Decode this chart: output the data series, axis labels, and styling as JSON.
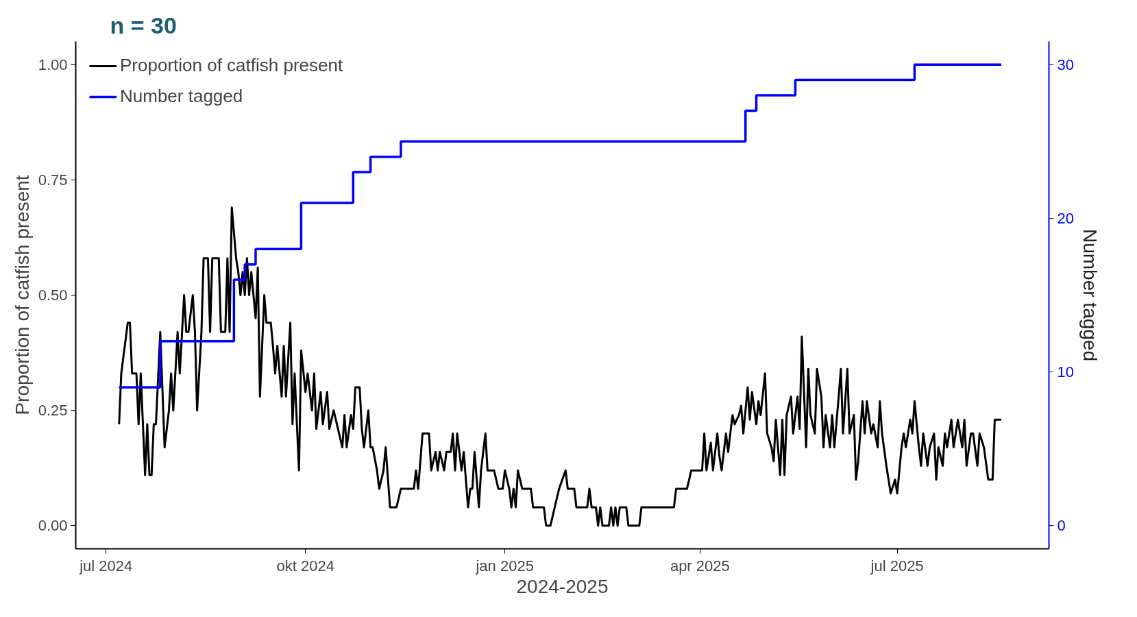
{
  "chart_data": {
    "type": "line",
    "xlabel": "2024-2025",
    "ylabel": "Proportion of catfish present",
    "y2label": "Number tagged",
    "annotations": [
      "n = 30"
    ],
    "xlim": [
      "2024-06-17",
      "2025-09-09"
    ],
    "xticks": [
      {
        "value": "2024-07-01",
        "label": "jul 2024"
      },
      {
        "value": "2024-10-01",
        "label": "okt 2024"
      },
      {
        "value": "2025-01-01",
        "label": "jan 2025"
      },
      {
        "value": "2025-04-01",
        "label": "apr 2025"
      },
      {
        "value": "2025-07-01",
        "label": "jul 2025"
      }
    ],
    "ylim": [
      -0.05,
      1.05
    ],
    "yticks": [
      {
        "value": 0,
        "label": "0.00"
      },
      {
        "value": 0.25,
        "label": "0.25"
      },
      {
        "value": 0.5,
        "label": "0.50"
      },
      {
        "value": 0.75,
        "label": "0.75"
      },
      {
        "value": 1,
        "label": "1.00"
      }
    ],
    "y2lim": [
      -1.5,
      31.5
    ],
    "y2ticks": [
      0,
      10,
      20,
      30
    ],
    "grid": false,
    "legend": "top left",
    "marker": "none",
    "line_style": "solid",
    "series": [
      {
        "name": "Proportion of catfish present",
        "color": "#000000",
        "x": [
          "2024-07-07",
          "2024-07-08",
          "2024-07-11",
          "2024-07-12",
          "2024-07-13",
          "2024-07-15",
          "2024-07-16",
          "2024-07-17",
          "2024-07-19",
          "2024-07-20",
          "2024-07-21",
          "2024-07-22",
          "2024-07-23",
          "2024-07-24",
          "2024-07-26",
          "2024-07-28",
          "2024-07-30",
          "2024-07-31",
          "2024-08-01",
          "2024-08-03",
          "2024-08-04",
          "2024-08-06",
          "2024-08-07",
          "2024-08-08",
          "2024-08-10",
          "2024-08-11",
          "2024-08-12",
          "2024-08-14",
          "2024-08-15",
          "2024-08-17",
          "2024-08-18",
          "2024-08-19",
          "2024-08-22",
          "2024-08-23",
          "2024-08-25",
          "2024-08-26",
          "2024-08-27",
          "2024-08-28",
          "2024-08-30",
          "2024-08-31",
          "2024-09-01",
          "2024-09-02",
          "2024-09-03",
          "2024-09-04",
          "2024-09-05",
          "2024-09-06",
          "2024-09-08",
          "2024-09-09",
          "2024-09-10",
          "2024-09-12",
          "2024-09-13",
          "2024-09-15",
          "2024-09-16",
          "2024-09-17",
          "2024-09-18",
          "2024-09-20",
          "2024-09-21",
          "2024-09-22",
          "2024-09-24",
          "2024-09-25",
          "2024-09-26",
          "2024-09-28",
          "2024-09-29",
          "2024-10-01",
          "2024-10-02",
          "2024-10-04",
          "2024-10-05",
          "2024-10-06",
          "2024-10-08",
          "2024-10-09",
          "2024-10-11",
          "2024-10-12",
          "2024-10-14",
          "2024-10-16",
          "2024-10-18",
          "2024-10-19",
          "2024-10-20",
          "2024-10-22",
          "2024-10-23",
          "2024-10-24",
          "2024-10-26",
          "2024-10-27",
          "2024-10-28",
          "2024-10-30",
          "2024-10-31",
          "2024-11-01",
          "2024-11-03",
          "2024-11-04",
          "2024-11-06",
          "2024-11-07",
          "2024-11-09",
          "2024-11-12",
          "2024-11-14",
          "2024-11-20",
          "2024-11-21",
          "2024-11-22",
          "2024-11-24",
          "2024-11-27",
          "2024-11-28",
          "2024-11-30",
          "2024-12-01",
          "2024-12-02",
          "2024-12-04",
          "2024-12-05",
          "2024-12-07",
          "2024-12-08",
          "2024-12-09",
          "2024-12-10",
          "2024-12-12",
          "2024-12-13",
          "2024-12-15",
          "2024-12-16",
          "2024-12-17",
          "2024-12-18",
          "2024-12-20",
          "2024-12-21",
          "2024-12-22",
          "2024-12-23",
          "2024-12-24",
          "2024-12-27",
          "2024-12-29",
          "2024-12-31",
          "2025-01-01",
          "2025-01-03",
          "2025-01-04",
          "2025-01-05",
          "2025-01-06",
          "2025-01-07",
          "2025-01-09",
          "2025-01-13",
          "2025-01-14",
          "2025-01-19",
          "2025-01-20",
          "2025-01-22",
          "2025-01-24",
          "2025-01-26",
          "2025-01-29",
          "2025-01-30",
          "2025-02-02",
          "2025-02-03",
          "2025-02-08",
          "2025-02-09",
          "2025-02-10",
          "2025-02-12",
          "2025-02-13",
          "2025-02-14",
          "2025-02-15",
          "2025-02-18",
          "2025-02-19",
          "2025-02-20",
          "2025-02-21",
          "2025-02-22",
          "2025-02-23",
          "2025-02-26",
          "2025-02-27",
          "2025-03-04",
          "2025-03-05",
          "2025-03-20",
          "2025-03-21",
          "2025-03-26",
          "2025-03-28",
          "2025-04-02",
          "2025-04-03",
          "2025-04-04",
          "2025-04-06",
          "2025-04-07",
          "2025-04-09",
          "2025-04-10",
          "2025-04-11",
          "2025-04-13",
          "2025-04-14",
          "2025-04-15",
          "2025-04-16",
          "2025-04-17",
          "2025-04-19",
          "2025-04-20",
          "2025-04-21",
          "2025-04-23",
          "2025-04-24",
          "2025-04-25",
          "2025-04-27",
          "2025-04-28",
          "2025-04-29",
          "2025-05-01",
          "2025-05-02",
          "2025-05-04",
          "2025-05-05",
          "2025-05-06",
          "2025-05-08",
          "2025-05-09",
          "2025-05-10",
          "2025-05-11",
          "2025-05-13",
          "2025-05-14",
          "2025-05-16",
          "2025-05-17",
          "2025-05-18",
          "2025-05-20",
          "2025-05-21",
          "2025-05-22",
          "2025-05-24",
          "2025-05-25",
          "2025-05-27",
          "2025-05-28",
          "2025-05-29",
          "2025-05-31",
          "2025-06-01",
          "2025-06-02",
          "2025-06-04",
          "2025-06-05",
          "2025-06-06",
          "2025-06-08",
          "2025-06-09",
          "2025-06-11",
          "2025-06-12",
          "2025-06-13",
          "2025-06-15",
          "2025-06-16",
          "2025-06-17",
          "2025-06-19",
          "2025-06-20",
          "2025-06-22",
          "2025-06-23",
          "2025-06-24",
          "2025-06-26",
          "2025-06-27",
          "2025-06-28",
          "2025-06-30",
          "2025-07-01",
          "2025-07-03",
          "2025-07-04",
          "2025-07-05",
          "2025-07-07",
          "2025-07-08",
          "2025-07-09",
          "2025-07-11",
          "2025-07-12",
          "2025-07-13",
          "2025-07-15",
          "2025-07-16",
          "2025-07-18",
          "2025-07-19",
          "2025-07-20",
          "2025-07-22",
          "2025-07-23",
          "2025-07-24",
          "2025-07-26",
          "2025-07-27",
          "2025-07-29",
          "2025-07-31",
          "2025-08-01",
          "2025-08-02",
          "2025-08-04",
          "2025-08-05",
          "2025-08-07",
          "2025-08-08",
          "2025-08-10",
          "2025-08-12",
          "2025-08-14",
          "2025-08-15",
          "2025-08-18"
        ],
        "values": [
          0.22,
          0.33,
          0.44,
          0.44,
          0.33,
          0.33,
          0.22,
          0.33,
          0.11,
          0.22,
          0.11,
          0.11,
          0.22,
          0.22,
          0.42,
          0.17,
          0.25,
          0.33,
          0.25,
          0.42,
          0.33,
          0.5,
          0.42,
          0.42,
          0.5,
          0.42,
          0.25,
          0.42,
          0.58,
          0.58,
          0.42,
          0.58,
          0.58,
          0.42,
          0.42,
          0.58,
          0.42,
          0.69,
          0.58,
          0.55,
          0.5,
          0.55,
          0.5,
          0.58,
          0.5,
          0.55,
          0.45,
          0.56,
          0.28,
          0.5,
          0.44,
          0.44,
          0.39,
          0.33,
          0.39,
          0.28,
          0.39,
          0.28,
          0.44,
          0.22,
          0.33,
          0.12,
          0.38,
          0.29,
          0.33,
          0.25,
          0.33,
          0.21,
          0.29,
          0.22,
          0.29,
          0.21,
          0.25,
          0.21,
          0.17,
          0.24,
          0.17,
          0.24,
          0.21,
          0.3,
          0.3,
          0.21,
          0.17,
          0.25,
          0.17,
          0.17,
          0.12,
          0.08,
          0.12,
          0.17,
          0.04,
          0.04,
          0.08,
          0.08,
          0.12,
          0.08,
          0.2,
          0.2,
          0.12,
          0.16,
          0.12,
          0.16,
          0.12,
          0.16,
          0.16,
          0.2,
          0.12,
          0.2,
          0.12,
          0.16,
          0.04,
          0.08,
          0.08,
          0.16,
          0.04,
          0.12,
          0.16,
          0.2,
          0.12,
          0.12,
          0.08,
          0.08,
          0.12,
          0.08,
          0.04,
          0.08,
          0.04,
          0.12,
          0.08,
          0.08,
          0.04,
          0.04,
          0.0,
          0.0,
          0.04,
          0.08,
          0.12,
          0.08,
          0.08,
          0.04,
          0.04,
          0.08,
          0.04,
          0.04,
          0.0,
          0.04,
          0.0,
          0.0,
          0.04,
          0.0,
          0.04,
          0.0,
          0.04,
          0.04,
          0.0,
          0.0,
          0.04,
          0.04,
          0.08,
          0.08,
          0.12,
          0.12,
          0.2,
          0.12,
          0.18,
          0.12,
          0.2,
          0.15,
          0.12,
          0.2,
          0.16,
          0.2,
          0.24,
          0.22,
          0.24,
          0.26,
          0.2,
          0.3,
          0.23,
          0.29,
          0.22,
          0.27,
          0.24,
          0.33,
          0.2,
          0.17,
          0.14,
          0.23,
          0.11,
          0.23,
          0.11,
          0.24,
          0.28,
          0.2,
          0.28,
          0.21,
          0.41,
          0.17,
          0.34,
          0.24,
          0.2,
          0.34,
          0.28,
          0.17,
          0.24,
          0.17,
          0.24,
          0.17,
          0.28,
          0.34,
          0.2,
          0.34,
          0.2,
          0.24,
          0.1,
          0.14,
          0.27,
          0.2,
          0.27,
          0.2,
          0.22,
          0.17,
          0.27,
          0.2,
          0.13,
          0.1,
          0.07,
          0.1,
          0.07,
          0.17,
          0.2,
          0.17,
          0.23,
          0.2,
          0.27,
          0.17,
          0.13,
          0.2,
          0.13,
          0.17,
          0.2,
          0.1,
          0.17,
          0.13,
          0.2,
          0.17,
          0.23,
          0.17,
          0.23,
          0.17,
          0.23,
          0.13,
          0.2,
          0.2,
          0.13,
          0.2,
          0.17,
          0.1,
          0.1,
          0.23,
          0.23
        ]
      },
      {
        "name": "Number tagged",
        "color": "#0000ff",
        "type": "step",
        "axis": "y2",
        "x": [
          "2024-07-07",
          "2024-07-26",
          "2024-08-29",
          "2024-09-03",
          "2024-09-08",
          "2024-09-29",
          "2024-10-23",
          "2024-10-31",
          "2024-11-14",
          "2025-04-22",
          "2025-04-27",
          "2025-05-15",
          "2025-07-09",
          "2025-08-18"
        ],
        "values": [
          9,
          12,
          16,
          17,
          18,
          21,
          23,
          24,
          25,
          27,
          28,
          29,
          30,
          30
        ]
      }
    ]
  }
}
